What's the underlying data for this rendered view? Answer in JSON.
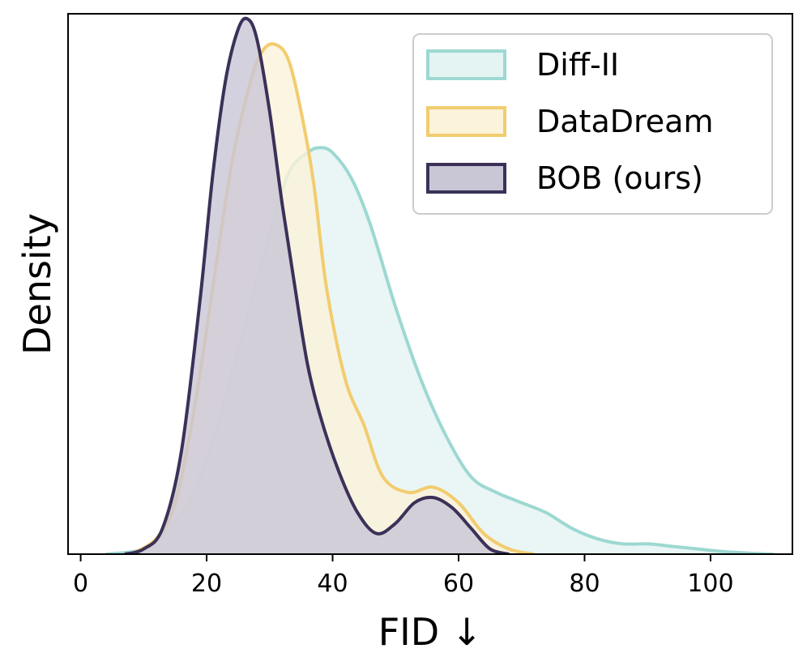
{
  "chart_data": {
    "type": "area",
    "title": "",
    "xlabel": "FID ↓",
    "ylabel": "Density",
    "xlim": [
      -2,
      113
    ],
    "ylim": [
      0,
      1.05
    ],
    "xticks": [
      0,
      20,
      40,
      60,
      80,
      100
    ],
    "xtick_labels": [
      "0",
      "20",
      "40",
      "60",
      "80",
      "100"
    ],
    "yticks_shown": false,
    "grid": false,
    "legend_position": "top-right",
    "series": [
      {
        "name": "Diff-II",
        "line_color": "#9dd8d2",
        "fill_color": "#e3f4f2",
        "x": [
          4,
          10,
          14,
          18,
          22,
          26,
          30,
          33,
          36,
          38,
          40,
          43,
          46,
          50,
          54,
          58,
          62,
          66,
          70,
          74,
          78,
          82,
          86,
          90,
          94,
          98,
          102,
          106,
          110
        ],
        "y": [
          0.0,
          0.01,
          0.05,
          0.12,
          0.26,
          0.44,
          0.62,
          0.74,
          0.78,
          0.79,
          0.78,
          0.73,
          0.64,
          0.48,
          0.34,
          0.23,
          0.15,
          0.12,
          0.1,
          0.08,
          0.05,
          0.03,
          0.02,
          0.02,
          0.015,
          0.01,
          0.005,
          0.002,
          0.0
        ]
      },
      {
        "name": "DataDream",
        "line_color": "#f2cc6f",
        "fill_color": "#fbf3da",
        "x": [
          8,
          12,
          15,
          18,
          21,
          24,
          27,
          29,
          31,
          33,
          35,
          37,
          39,
          42,
          45,
          48,
          52,
          56,
          60,
          64,
          68,
          72
        ],
        "y": [
          0.0,
          0.03,
          0.1,
          0.28,
          0.52,
          0.76,
          0.92,
          0.98,
          0.99,
          0.96,
          0.86,
          0.72,
          0.52,
          0.34,
          0.25,
          0.15,
          0.12,
          0.13,
          0.1,
          0.04,
          0.01,
          0.0
        ]
      },
      {
        "name": "BOB (ours)",
        "line_color": "#3b3158",
        "fill_color": "#c9c6d6",
        "x": [
          7,
          10,
          13,
          16,
          19,
          21,
          23,
          25,
          26.5,
          28,
          30,
          32,
          34,
          36,
          38,
          41,
          44,
          47,
          50,
          53,
          56,
          59,
          62,
          65,
          68
        ],
        "y": [
          0.0,
          0.01,
          0.05,
          0.2,
          0.5,
          0.74,
          0.92,
          1.02,
          1.04,
          1.0,
          0.86,
          0.68,
          0.52,
          0.37,
          0.27,
          0.16,
          0.08,
          0.04,
          0.06,
          0.1,
          0.11,
          0.09,
          0.05,
          0.01,
          0.0
        ]
      }
    ]
  }
}
